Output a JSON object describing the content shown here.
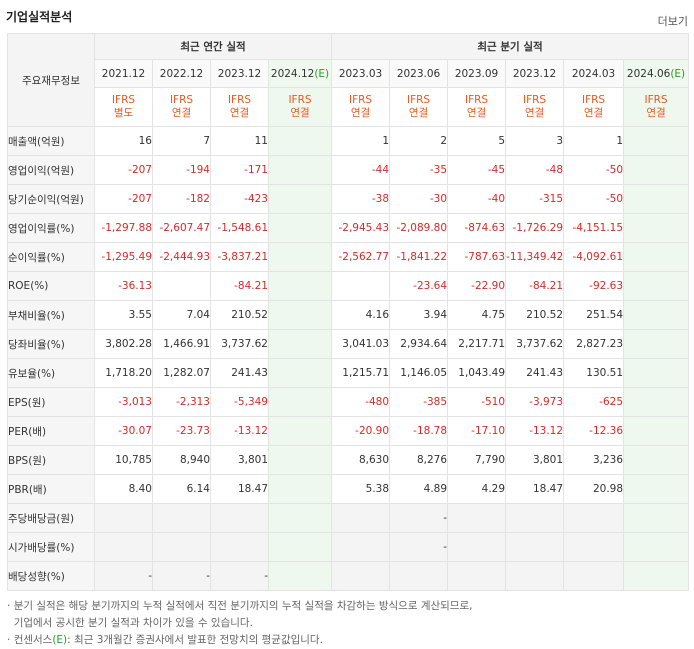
{
  "title": "기업실적분석",
  "more_label": "더보기",
  "corner_label": "주요재무정보",
  "groups": {
    "annual": "최근 연간 실적",
    "quarter": "최근 분기 실적"
  },
  "periods": [
    {
      "label": "2021.12",
      "est": false,
      "ifrs": "IFRS",
      "basis": "별도"
    },
    {
      "label": "2022.12",
      "est": false,
      "ifrs": "IFRS",
      "basis": "연결"
    },
    {
      "label": "2023.12",
      "est": false,
      "ifrs": "IFRS",
      "basis": "연결"
    },
    {
      "label": "2024.12",
      "est": true,
      "est_mark": "(E)",
      "ifrs": "IFRS",
      "basis": "연결"
    },
    {
      "label": "2023.03",
      "est": false,
      "ifrs": "IFRS",
      "basis": "연결"
    },
    {
      "label": "2023.06",
      "est": false,
      "ifrs": "IFRS",
      "basis": "연결"
    },
    {
      "label": "2023.09",
      "est": false,
      "ifrs": "IFRS",
      "basis": "연결"
    },
    {
      "label": "2023.12",
      "est": false,
      "ifrs": "IFRS",
      "basis": "연결"
    },
    {
      "label": "2024.03",
      "est": false,
      "ifrs": "IFRS",
      "basis": "연결"
    },
    {
      "label": "2024.06",
      "est": true,
      "est_mark": "(E)",
      "ifrs": "IFRS",
      "basis": "연결"
    }
  ],
  "rows": [
    {
      "label": "매출액(억원)",
      "values": [
        "16",
        "7",
        "11",
        "",
        "1",
        "2",
        "5",
        "3",
        "1",
        ""
      ]
    },
    {
      "label": "영업이익(억원)",
      "values": [
        "-207",
        "-194",
        "-171",
        "",
        "-44",
        "-35",
        "-45",
        "-48",
        "-50",
        ""
      ]
    },
    {
      "label": "당기순이익(억원)",
      "values": [
        "-207",
        "-182",
        "-423",
        "",
        "-38",
        "-30",
        "-40",
        "-315",
        "-50",
        ""
      ]
    },
    {
      "label": "영업이익률(%)",
      "sep": true,
      "values": [
        "-1,297.88",
        "-2,607.47",
        "-1,548.61",
        "",
        "-2,945.43",
        "-2,089.80",
        "-874.63",
        "-1,726.29",
        "-4,151.15",
        ""
      ]
    },
    {
      "label": "순이익률(%)",
      "values": [
        "-1,295.49",
        "-2,444.93",
        "-3,837.21",
        "",
        "-2,562.77",
        "-1,841.22",
        "-787.63",
        "-11,349.42",
        "-4,092.61",
        ""
      ]
    },
    {
      "label": "ROE(%)",
      "values": [
        "-36.13",
        "",
        "-84.21",
        "",
        "",
        "-23.64",
        "-22.90",
        "-84.21",
        "-92.63",
        ""
      ]
    },
    {
      "label": "부채비율(%)",
      "sep": true,
      "values": [
        "3.55",
        "7.04",
        "210.52",
        "",
        "4.16",
        "3.94",
        "4.75",
        "210.52",
        "251.54",
        ""
      ]
    },
    {
      "label": "당좌비율(%)",
      "values": [
        "3,802.28",
        "1,466.91",
        "3,737.62",
        "",
        "3,041.03",
        "2,934.64",
        "2,217.71",
        "3,737.62",
        "2,827.23",
        ""
      ]
    },
    {
      "label": "유보율(%)",
      "values": [
        "1,718.20",
        "1,282.07",
        "241.43",
        "",
        "1,215.71",
        "1,146.05",
        "1,043.49",
        "241.43",
        "130.51",
        ""
      ]
    },
    {
      "label": "EPS(원)",
      "sep": true,
      "values": [
        "-3,013",
        "-2,313",
        "-5,349",
        "",
        "-480",
        "-385",
        "-510",
        "-3,973",
        "-625",
        ""
      ]
    },
    {
      "label": "PER(배)",
      "values": [
        "-30.07",
        "-23.73",
        "-13.12",
        "",
        "-20.90",
        "-18.78",
        "-17.10",
        "-13.12",
        "-12.36",
        ""
      ]
    },
    {
      "label": "BPS(원)",
      "values": [
        "10,785",
        "8,940",
        "3,801",
        "",
        "8,630",
        "8,276",
        "7,790",
        "3,801",
        "3,236",
        ""
      ]
    },
    {
      "label": "PBR(배)",
      "values": [
        "8.40",
        "6.14",
        "18.47",
        "",
        "5.38",
        "4.89",
        "4.29",
        "18.47",
        "20.98",
        ""
      ]
    },
    {
      "label": "주당배당금(원)",
      "sep": true,
      "gray": true,
      "values": [
        "",
        "",
        "",
        "",
        "",
        "-",
        "",
        "",
        "",
        ""
      ]
    },
    {
      "label": "시가배당률(%)",
      "gray": true,
      "values": [
        "",
        "",
        "",
        "",
        "",
        "-",
        "",
        "",
        "",
        ""
      ]
    },
    {
      "label": "배당성향(%)",
      "gray": true,
      "values": [
        "-",
        "-",
        "-",
        "",
        "",
        "",
        "",
        "",
        "",
        ""
      ]
    }
  ],
  "notes": {
    "line1": "분기 실적은 해당 분기까지의 누적 실적에서 직전 분기까지의 누적 실적을 차감하는 방식으로 계산되므로,",
    "line2": "기업에서 공시한 분기 실적과 차이가 있을 수 있습니다.",
    "line3_pre": "컨센서스",
    "line3_mark": "(E)",
    "line3_post": ": 최근 3개월간 증권사에서 발표한 전망치의 평균값입니다."
  }
}
